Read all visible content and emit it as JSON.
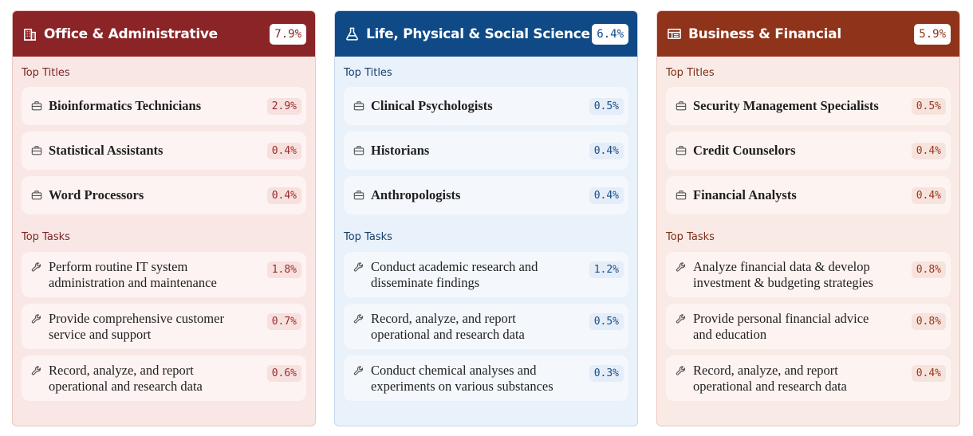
{
  "cards": [
    {
      "title": "Office & Administrative",
      "icon": "building-icon",
      "percent": "7.9%",
      "color": "#8a2426",
      "top_titles_label": "Top Titles",
      "titles": [
        {
          "label": "Bioinformatics Technicians",
          "percent": "2.9%"
        },
        {
          "label": "Statistical Assistants",
          "percent": "0.4%"
        },
        {
          "label": "Word Processors",
          "percent": "0.4%"
        }
      ],
      "top_tasks_label": "Top Tasks",
      "tasks": [
        {
          "line1": "Perform routine IT system",
          "line2": "administration and maintenance",
          "percent": "1.8%"
        },
        {
          "line1": "Provide comprehensive customer",
          "line2": "service and support",
          "percent": "0.7%"
        },
        {
          "line1": "Record, analyze, and report",
          "line2": "operational and research data",
          "percent": "0.6%"
        }
      ]
    },
    {
      "title": "Life, Physical & Social Science",
      "icon": "flask-icon",
      "percent": "6.4%",
      "color": "#0f4a86",
      "top_titles_label": "Top Titles",
      "titles": [
        {
          "label": "Clinical Psychologists",
          "percent": "0.5%"
        },
        {
          "label": "Historians",
          "percent": "0.4%"
        },
        {
          "label": "Anthropologists",
          "percent": "0.4%"
        }
      ],
      "top_tasks_label": "Top Tasks",
      "tasks": [
        {
          "line1": "Conduct academic research and",
          "line2": "disseminate findings",
          "percent": "1.2%"
        },
        {
          "line1": "Record, analyze, and report",
          "line2": "operational and research data",
          "percent": "0.5%"
        },
        {
          "line1": "Conduct chemical analyses and",
          "line2": "experiments on various substances",
          "percent": "0.3%"
        }
      ]
    },
    {
      "title": "Business & Financial",
      "icon": "ledger-icon",
      "percent": "5.9%",
      "color": "#8f341a",
      "top_titles_label": "Top Titles",
      "titles": [
        {
          "label": "Security Management Specialists",
          "percent": "0.5%"
        },
        {
          "label": "Credit Counselors",
          "percent": "0.4%"
        },
        {
          "label": "Financial Analysts",
          "percent": "0.4%"
        }
      ],
      "top_tasks_label": "Top Tasks",
      "tasks": [
        {
          "line1": "Analyze financial data & develop",
          "line2": "investment & budgeting strategies",
          "percent": "0.8%"
        },
        {
          "line1": "Provide personal financial advice",
          "line2": "and education",
          "percent": "0.8%"
        },
        {
          "line1": "Record, analyze, and report",
          "line2": "operational and research data",
          "percent": "0.4%"
        }
      ]
    }
  ]
}
